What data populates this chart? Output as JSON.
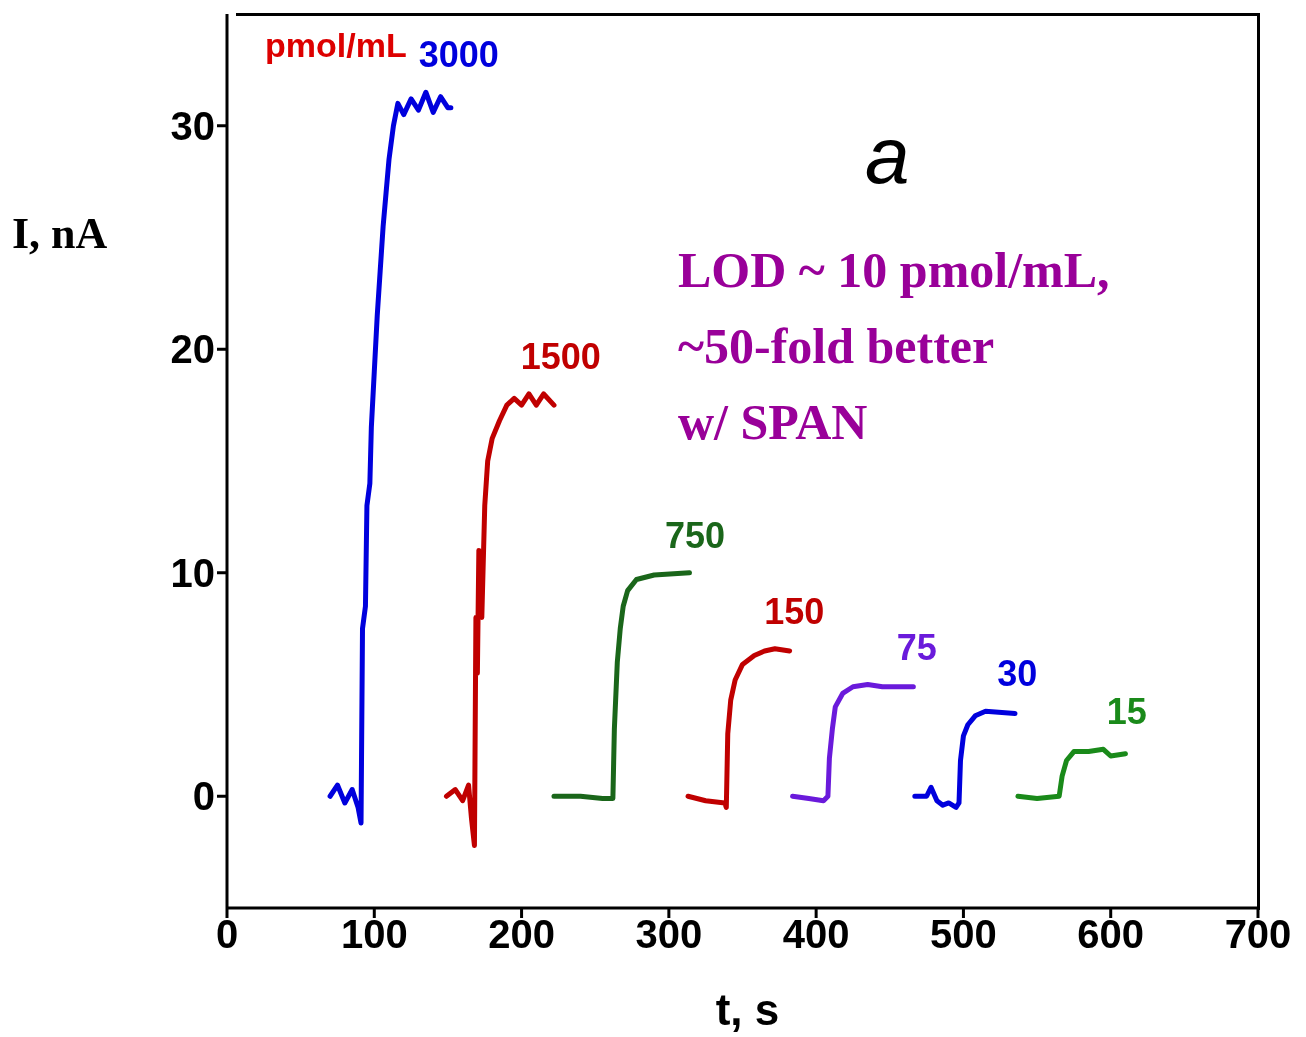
{
  "chart_data": {
    "type": "line",
    "xlabel": "t, s",
    "ylabel": "I, nA",
    "xlim": [
      0,
      700
    ],
    "xticks": [
      0,
      100,
      200,
      300,
      400,
      500,
      600,
      700
    ],
    "ylim": [
      -5,
      35
    ],
    "yticks": [
      0,
      10,
      20,
      30
    ],
    "grid": false,
    "legend": false,
    "marker": "none",
    "line_style": "solid",
    "annotations": [
      "pmol/mL",
      "a",
      "LOD ~ 10 pmol/mL,\n~50-fold better\nw/ SPAN"
    ],
    "series": [
      {
        "name": "3000",
        "color": "#0000dd",
        "x": [
          70,
          75,
          80,
          85,
          89,
          91,
          92,
          94,
          95,
          97,
          98,
          100,
          102,
          104,
          106,
          108,
          110,
          113,
          116,
          120,
          125,
          130,
          135,
          140,
          145,
          150,
          152
        ],
        "values": [
          0,
          0.5,
          -0.3,
          0.3,
          -0.5,
          -1.2,
          7.5,
          8.5,
          13,
          14,
          16.5,
          19,
          21.5,
          23.5,
          25.5,
          27,
          28.5,
          30,
          31,
          30.5,
          31.2,
          30.7,
          31.5,
          30.6,
          31.3,
          30.8,
          30.8
        ]
      },
      {
        "name": "1500",
        "color": "#c00000",
        "x": [
          149,
          155,
          160,
          164,
          166,
          168,
          169,
          170,
          171,
          173,
          175,
          177,
          180,
          185,
          190,
          195,
          200,
          205,
          210,
          215,
          222
        ],
        "values": [
          0,
          0.3,
          -0.2,
          0.5,
          -1,
          -2.2,
          8,
          5.5,
          11,
          8,
          13,
          15,
          16,
          16.8,
          17.5,
          17.8,
          17.5,
          18,
          17.5,
          18,
          17.5
        ]
      },
      {
        "name": "750",
        "color": "#1a661a",
        "x": [
          222,
          240,
          255,
          262,
          263,
          265,
          267,
          269,
          272,
          278,
          290,
          314
        ],
        "values": [
          0,
          0,
          -0.1,
          -0.1,
          3,
          6,
          7.5,
          8.5,
          9.2,
          9.7,
          9.9,
          10
        ]
      },
      {
        "name": "150",
        "color": "#c00000",
        "x": [
          313,
          325,
          338,
          339,
          340,
          342,
          345,
          350,
          358,
          365,
          372,
          382
        ],
        "values": [
          0,
          -0.2,
          -0.3,
          -0.5,
          2.8,
          4.3,
          5.2,
          5.9,
          6.3,
          6.5,
          6.6,
          6.5
        ]
      },
      {
        "name": "75",
        "color": "#6a1adb",
        "x": [
          384,
          395,
          405,
          408,
          409,
          411,
          413,
          418,
          425,
          435,
          445,
          466
        ],
        "values": [
          0,
          -0.1,
          -0.2,
          0,
          1.7,
          3,
          4,
          4.6,
          4.9,
          5,
          4.9,
          4.9
        ]
      },
      {
        "name": "30",
        "color": "#0000dd",
        "x": [
          467,
          475,
          478,
          482,
          486,
          490,
          495,
          497,
          498,
          500,
          503,
          508,
          515,
          535
        ],
        "values": [
          0,
          0,
          0.4,
          -0.2,
          -0.4,
          -0.3,
          -0.5,
          -0.3,
          1.6,
          2.7,
          3.2,
          3.6,
          3.8,
          3.7
        ]
      },
      {
        "name": "15",
        "color": "#1a8a1a",
        "x": [
          537,
          550,
          565,
          567,
          570,
          575,
          585,
          595,
          600,
          610
        ],
        "values": [
          0,
          -0.1,
          0,
          0.9,
          1.6,
          2,
          2,
          2.1,
          1.8,
          1.9
        ]
      }
    ]
  }
}
